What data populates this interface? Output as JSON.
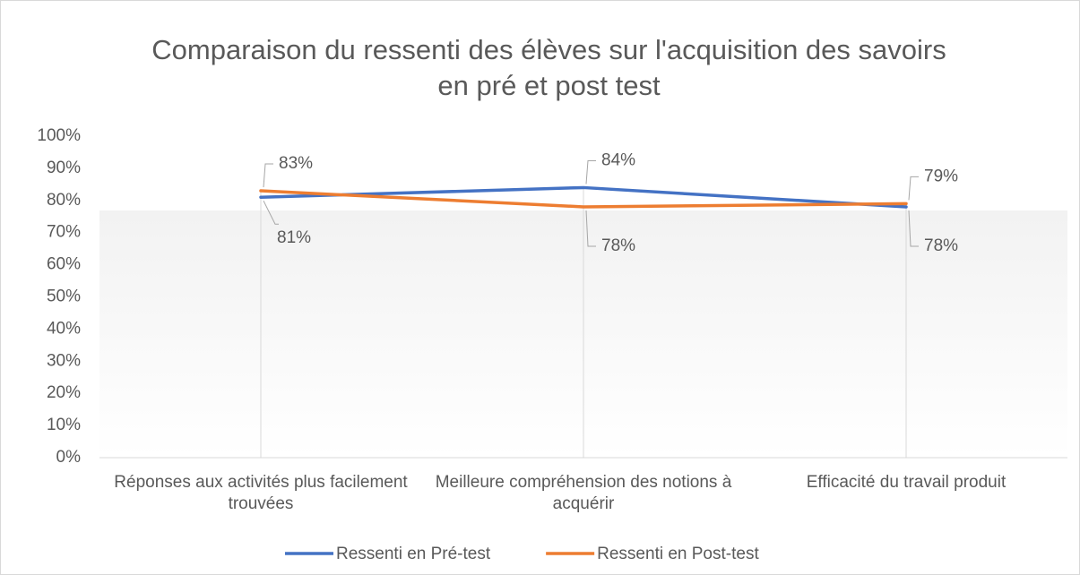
{
  "chart_data": {
    "type": "line",
    "title": "Comparaison du ressenti des élèves sur l'acquisition des savoirs en pré et post test",
    "categories": [
      "Réponses aux activités plus facilement trouvées",
      "Meilleure compréhension des notions à acquérir",
      "Efficacité du travail produit"
    ],
    "series": [
      {
        "name": "Ressenti en Pré-test",
        "color": "#4472c4",
        "values": [
          81,
          84,
          78
        ],
        "value_labels": [
          "81%",
          "84%",
          "78%"
        ]
      },
      {
        "name": "Ressenti en Post-test",
        "color": "#ed7d31",
        "values": [
          83,
          78,
          79
        ],
        "value_labels": [
          "83%",
          "78%",
          "79%"
        ]
      }
    ],
    "ylim": [
      0,
      100
    ],
    "yticks": [
      {
        "value": 0,
        "label": "0%"
      },
      {
        "value": 10,
        "label": "10%"
      },
      {
        "value": 20,
        "label": "20%"
      },
      {
        "value": 30,
        "label": "30%"
      },
      {
        "value": 40,
        "label": "40%"
      },
      {
        "value": 50,
        "label": "50%"
      },
      {
        "value": 60,
        "label": "60%"
      },
      {
        "value": 70,
        "label": "70%"
      },
      {
        "value": 80,
        "label": "80%"
      },
      {
        "value": 90,
        "label": "90%"
      },
      {
        "value": 100,
        "label": "100%"
      }
    ],
    "legend": "bottom"
  }
}
